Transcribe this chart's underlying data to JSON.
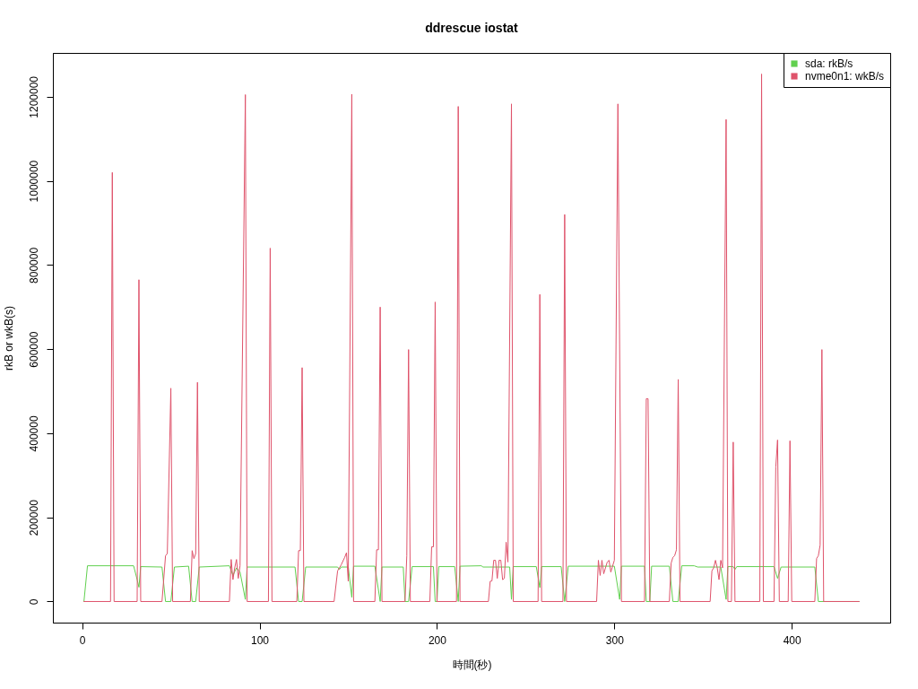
{
  "chart_data": {
    "type": "line",
    "title": "ddrescue iostat",
    "xlabel": "時間(秒)",
    "ylabel": "rkB or wkB(s)",
    "xlim": [
      -16.5,
      455.5
    ],
    "xticks": [
      0,
      100,
      200,
      300,
      400
    ],
    "ylim": [
      -50160,
      1304160
    ],
    "yticks": [
      0,
      200000,
      400000,
      600000,
      800000,
      1000000,
      1200000
    ],
    "grid": false,
    "legend": "top right",
    "series": [
      {
        "name": "sda: rkB/s",
        "color": "#61d04f",
        "x": [
          1,
          3,
          29,
          31,
          32,
          33,
          45,
          47,
          50,
          52,
          60,
          62,
          64,
          66,
          83,
          85,
          87,
          89,
          92,
          93,
          120,
          122,
          124,
          126,
          144,
          145,
          146,
          150,
          152,
          153,
          165,
          168,
          169,
          181,
          182,
          184,
          186,
          198,
          199,
          200,
          201,
          210,
          212,
          213,
          225,
          226,
          241,
          242,
          243,
          256,
          258,
          259,
          270,
          272,
          274,
          300,
          303,
          304,
          317,
          318,
          320,
          321,
          331,
          333,
          336,
          338,
          345,
          347,
          360,
          363,
          364,
          367,
          368,
          369,
          390,
          392,
          394,
          413,
          415,
          438
        ],
        "values": [
          0,
          85000,
          85000,
          52000,
          34000,
          83000,
          82000,
          0,
          0,
          82000,
          84000,
          0,
          0,
          82000,
          85000,
          62000,
          80000,
          70000,
          5000,
          82000,
          82000,
          0,
          0,
          82000,
          82000,
          76000,
          82000,
          82000,
          10000,
          84000,
          84000,
          0,
          82000,
          82000,
          0,
          0,
          83000,
          83000,
          0,
          0,
          83000,
          83000,
          0,
          84000,
          85000,
          82000,
          82000,
          5000,
          83000,
          83000,
          33000,
          83000,
          83000,
          0,
          84000,
          84000,
          5000,
          84000,
          84000,
          0,
          0,
          84000,
          84000,
          0,
          0,
          85000,
          85000,
          82000,
          82000,
          5000,
          83000,
          83000,
          76000,
          83000,
          83000,
          55000,
          82000,
          82000,
          0,
          0
        ]
      },
      {
        "name": "nvme0n1: wkB/s",
        "color": "#df536b",
        "x": [
          1,
          16,
          17,
          18,
          31,
          32,
          33,
          45,
          47,
          48,
          50,
          51,
          61,
          62,
          63,
          64,
          65,
          66,
          83,
          84,
          85,
          86,
          87,
          88,
          89,
          92,
          93,
          105,
          106,
          107,
          121,
          122,
          123,
          124,
          125,
          142,
          144,
          146,
          148,
          149,
          150,
          152,
          153,
          165,
          166,
          167,
          168,
          169,
          182,
          183,
          184,
          185,
          196,
          197,
          198,
          199,
          200,
          211,
          212,
          213,
          229,
          230,
          231,
          232,
          233,
          234,
          235,
          236,
          237,
          238,
          239,
          240,
          242,
          243,
          257,
          258,
          259,
          271,
          272,
          273,
          290,
          291,
          292,
          293,
          294,
          296,
          297,
          298,
          300,
          302,
          304,
          317,
          318,
          319,
          320,
          331,
          332,
          333,
          334,
          335,
          336,
          337,
          354,
          355,
          356,
          357,
          358,
          359,
          360,
          361,
          363,
          364,
          366,
          367,
          368,
          382,
          383,
          384,
          390,
          391,
          392,
          393,
          398,
          399,
          400,
          413,
          414,
          415,
          416,
          417,
          418,
          438
        ],
        "values": [
          0,
          0,
          1020000,
          0,
          0,
          765000,
          0,
          0,
          109000,
          114000,
          507000,
          0,
          0,
          121000,
          102000,
          114000,
          521000,
          0,
          0,
          100000,
          52000,
          80000,
          100000,
          55000,
          85000,
          1205000,
          0,
          0,
          840000,
          0,
          0,
          121000,
          121000,
          556000,
          0,
          0,
          73000,
          87000,
          105000,
          116000,
          48000,
          1206000,
          0,
          0,
          123000,
          123000,
          700000,
          0,
          0,
          109000,
          599000,
          0,
          0,
          130000,
          130000,
          712000,
          0,
          0,
          1177000,
          0,
          0,
          48000,
          49000,
          98000,
          98000,
          55000,
          98000,
          98000,
          52000,
          55000,
          141000,
          94000,
          1183000,
          0,
          0,
          730000,
          0,
          0,
          920000,
          0,
          0,
          98000,
          62000,
          98000,
          66000,
          94000,
          98000,
          70000,
          98000,
          1183000,
          0,
          0,
          482000,
          482000,
          0,
          0,
          91000,
          105000,
          109000,
          123000,
          528000,
          0,
          0,
          73000,
          80000,
          98000,
          80000,
          52000,
          98000,
          80000,
          1146000,
          0,
          0,
          379000,
          0,
          0,
          1254000,
          0,
          0,
          320000,
          384000,
          0,
          0,
          382000,
          0,
          0,
          102000,
          109000,
          134000,
          599000,
          0,
          0
        ]
      }
    ]
  }
}
